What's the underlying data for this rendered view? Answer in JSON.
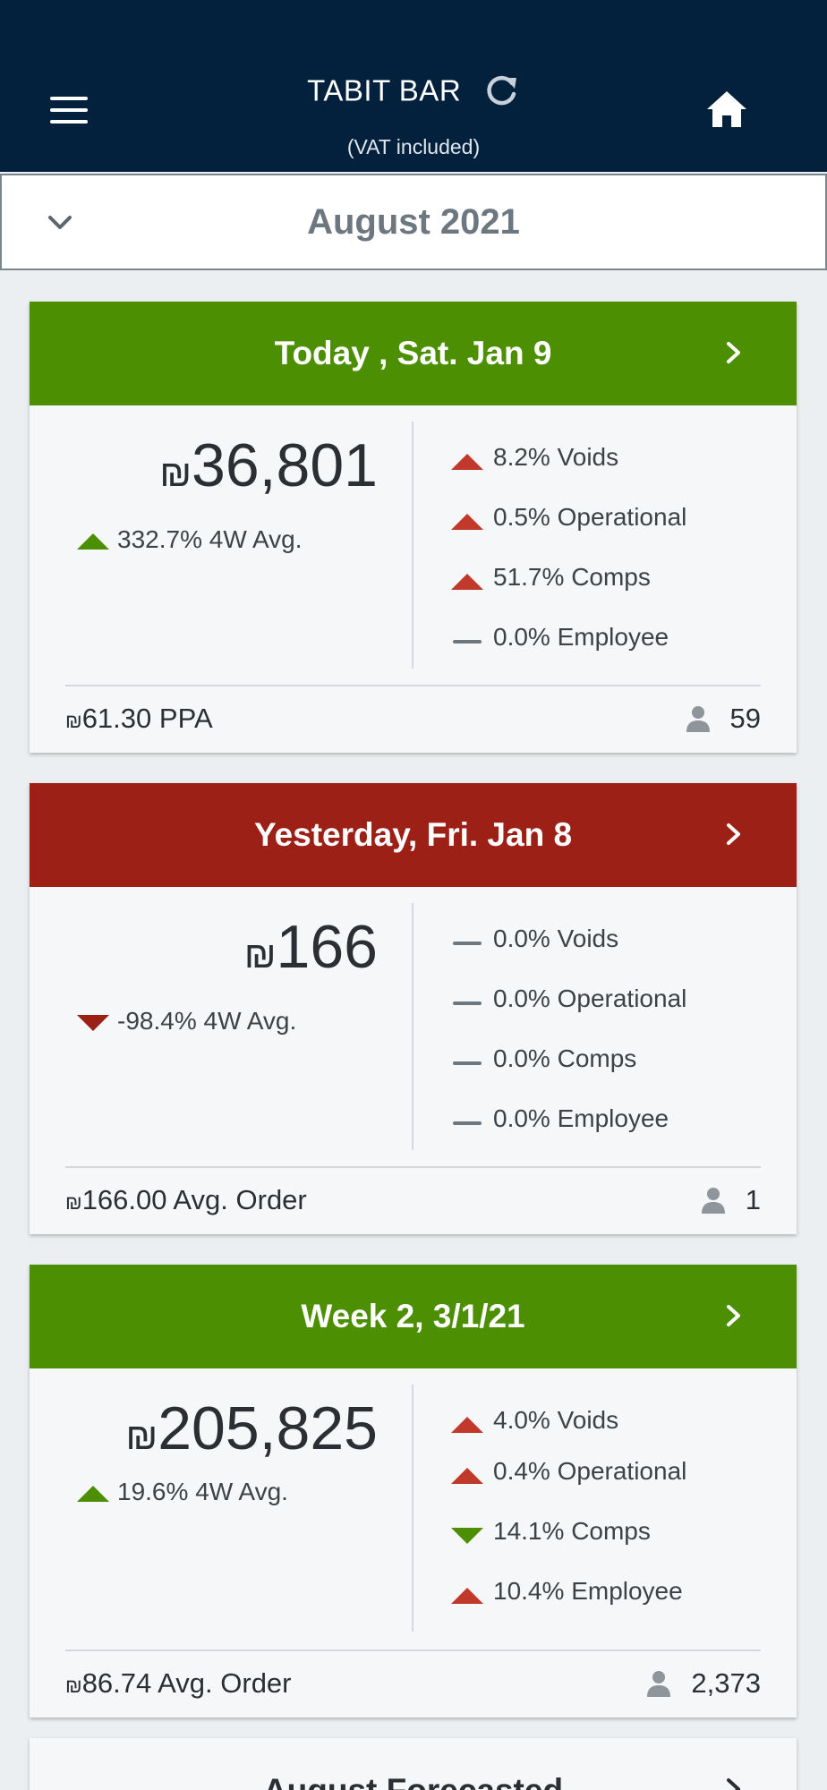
{
  "header": {
    "title": "TABIT BAR",
    "subtitle": "(VAT included)"
  },
  "month_selector": {
    "label": "August 2021"
  },
  "currency": "₪",
  "colors": {
    "header_bg": "#03213d",
    "green": "#4c8f03",
    "red": "#9c2016",
    "up_red": "#c0392b",
    "neutral": "#6d7780"
  },
  "cards": [
    {
      "header": "Today , Sat. Jan 9",
      "total": "36,801",
      "avg_pct": "332.7%",
      "avg_label": "4W Avg.",
      "metrics": [
        {
          "value": "8.2%",
          "label": "Voids"
        },
        {
          "value": "0.5%",
          "label": "Operational"
        },
        {
          "value": "51.7%",
          "label": "Comps"
        },
        {
          "value": "0.0%",
          "label": "Employee"
        }
      ],
      "footer_value": "61.30",
      "footer_label": "PPA",
      "count": "59"
    },
    {
      "header": "Yesterday, Fri. Jan 8",
      "total": "166",
      "avg_pct": "-98.4%",
      "avg_label": "4W Avg.",
      "metrics": [
        {
          "value": "0.0%",
          "label": "Voids"
        },
        {
          "value": "0.0%",
          "label": "Operational"
        },
        {
          "value": "0.0%",
          "label": "Comps"
        },
        {
          "value": "0.0%",
          "label": "Employee"
        }
      ],
      "footer_value": "166.00",
      "footer_label": "Avg. Order",
      "count": "1"
    },
    {
      "header": "Week 2, 3/1/21",
      "total": "205,825",
      "avg_pct": "19.6%",
      "avg_label": "4W Avg.",
      "metrics": [
        {
          "value": "4.0%",
          "label": "Voids"
        },
        {
          "value": "0.4%",
          "label": "Operational"
        },
        {
          "value": "14.1%",
          "label": "Comps"
        },
        {
          "value": "10.4%",
          "label": "Employee"
        }
      ],
      "footer_value": "86.74",
      "footer_label": "Avg. Order",
      "count": "2,373"
    },
    {
      "header": "August Forecasted"
    }
  ]
}
